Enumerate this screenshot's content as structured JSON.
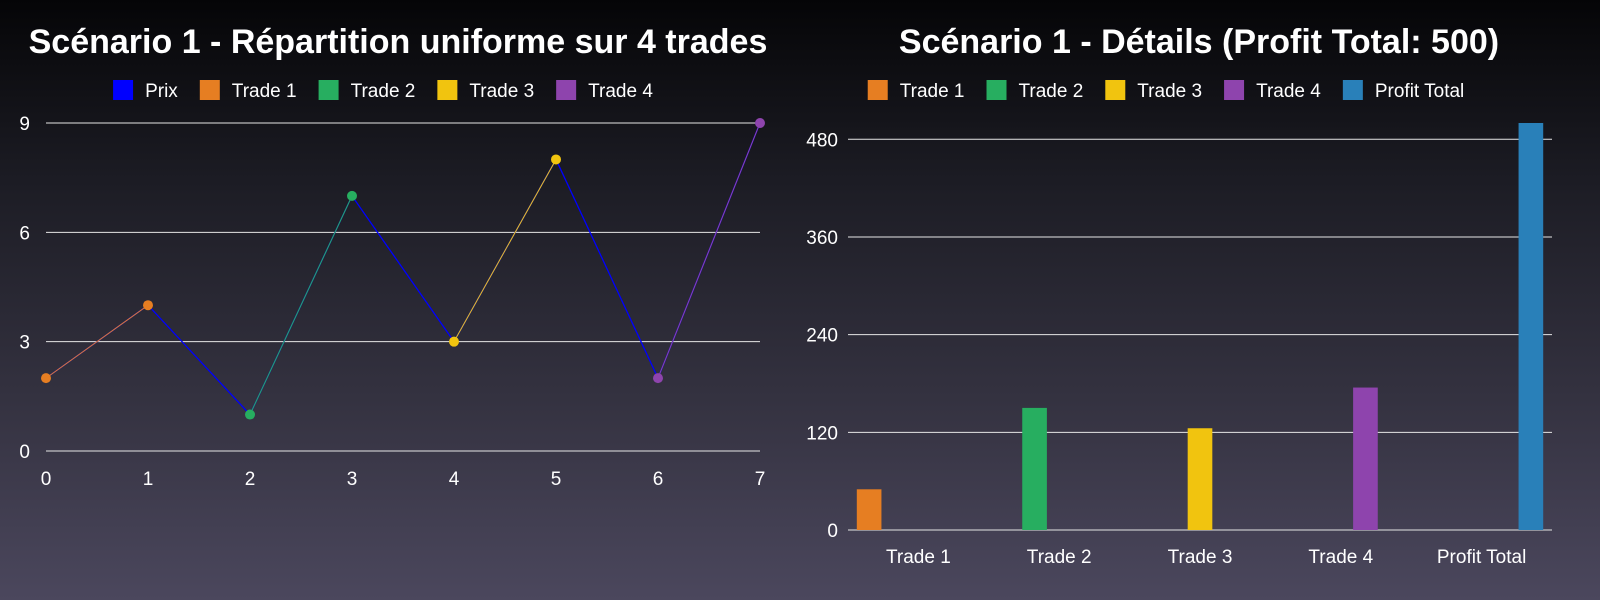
{
  "chart_data": [
    {
      "type": "line",
      "title": "Scénario 1 - Répartition uniforme sur 4 trades",
      "xlabel": "",
      "ylabel": "",
      "x": [
        0,
        1,
        2,
        3,
        4,
        5,
        6,
        7
      ],
      "price": [
        2,
        4,
        1,
        7,
        3,
        8,
        2,
        9
      ],
      "xlim": [
        0,
        7
      ],
      "ylim": [
        0,
        9
      ],
      "xticks": [
        0,
        1,
        2,
        3,
        4,
        5,
        6,
        7
      ],
      "yticks": [
        0,
        3,
        6,
        9
      ],
      "grid": "horizontal",
      "legend_position": "top-center",
      "series": [
        {
          "name": "Prix",
          "color": "#0000ff",
          "x": [
            0,
            1,
            2,
            3,
            4,
            5,
            6,
            7
          ],
          "y": [
            2,
            4,
            1,
            7,
            3,
            8,
            2,
            9
          ],
          "markers": false
        },
        {
          "name": "Trade 1",
          "color": "#e67e22",
          "x": [
            0,
            1
          ],
          "y": [
            2,
            4
          ],
          "markers": true
        },
        {
          "name": "Trade 2",
          "color": "#27ae60",
          "x": [
            2,
            3
          ],
          "y": [
            1,
            7
          ],
          "markers": true
        },
        {
          "name": "Trade 3",
          "color": "#f1c40f",
          "x": [
            4,
            5
          ],
          "y": [
            3,
            8
          ],
          "markers": true
        },
        {
          "name": "Trade 4",
          "color": "#8e44ad",
          "x": [
            6,
            7
          ],
          "y": [
            2,
            9
          ],
          "markers": true
        }
      ]
    },
    {
      "type": "bar",
      "title": "Scénario 1 - Détails (Profit Total: 500)",
      "xlabel": "",
      "ylabel": "",
      "categories": [
        "Trade 1",
        "Trade 2",
        "Trade 3",
        "Trade 4",
        "Profit Total"
      ],
      "ylim": [
        0,
        500
      ],
      "yticks": [
        0,
        120,
        240,
        360,
        480
      ],
      "grid": "horizontal",
      "legend_position": "top-center",
      "series": [
        {
          "name": "Trade 1",
          "color": "#e67e22",
          "values": [
            50,
            null,
            null,
            null,
            null
          ]
        },
        {
          "name": "Trade 2",
          "color": "#27ae60",
          "values": [
            null,
            150,
            null,
            null,
            null
          ]
        },
        {
          "name": "Trade 3",
          "color": "#f1c40f",
          "values": [
            null,
            null,
            125,
            null,
            null
          ]
        },
        {
          "name": "Trade 4",
          "color": "#8e44ad",
          "values": [
            null,
            null,
            null,
            175,
            null
          ]
        },
        {
          "name": "Profit Total",
          "color": "#2980b9",
          "values": [
            null,
            null,
            null,
            null,
            500
          ]
        }
      ]
    }
  ]
}
